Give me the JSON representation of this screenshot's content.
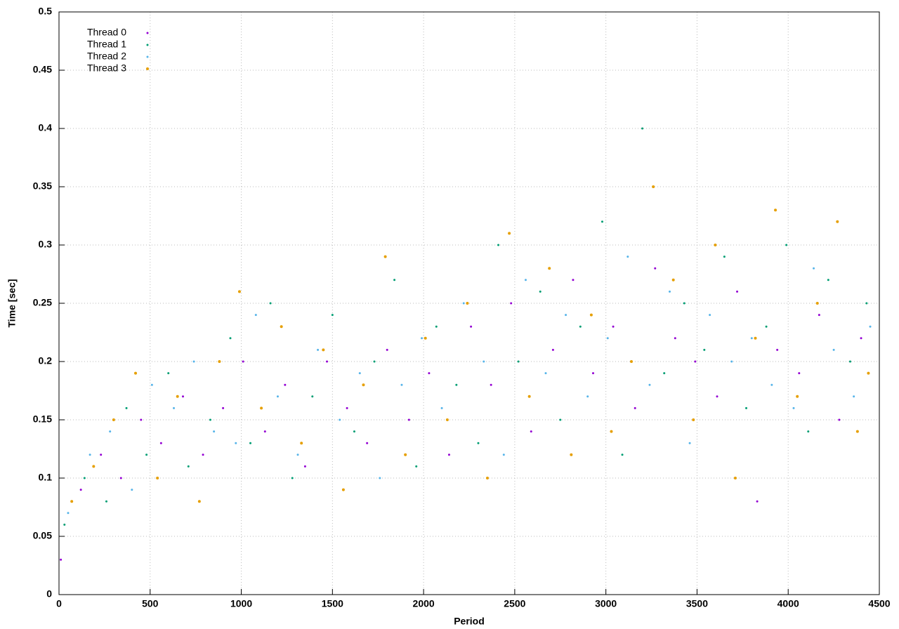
{
  "chart_data": {
    "type": "scatter",
    "x_label": "Period",
    "y_label": "Time [sec]",
    "xlim": [
      0,
      4500
    ],
    "ylim": [
      0,
      0.5
    ],
    "xticks": [
      0,
      500,
      1000,
      1500,
      2000,
      2500,
      3000,
      3500,
      4000,
      4500
    ],
    "yticks": [
      0,
      0.05,
      0.1,
      0.15,
      0.2,
      0.25,
      0.3,
      0.35,
      0.4,
      0.45,
      0.5
    ],
    "grid": true,
    "legend": "top-left",
    "series": [
      {
        "name": "Thread 0",
        "color": "#9400d3",
        "x": [
          10,
          120,
          230,
          340,
          450,
          560,
          680,
          790,
          900,
          1010,
          1130,
          1240,
          1350,
          1470,
          1580,
          1690,
          1800,
          1920,
          2030,
          2140,
          2260,
          2370,
          2480,
          2590,
          2710,
          2820,
          2930,
          3040,
          3160,
          3270,
          3380,
          3490,
          3610,
          3720,
          3830,
          3940,
          4060,
          4170,
          4280,
          4400
        ],
        "values": [
          0.03,
          0.09,
          0.12,
          0.1,
          0.15,
          0.13,
          0.17,
          0.12,
          0.16,
          0.2,
          0.14,
          0.18,
          0.11,
          0.2,
          0.16,
          0.13,
          0.21,
          0.15,
          0.19,
          0.12,
          0.23,
          0.18,
          0.25,
          0.14,
          0.21,
          0.27,
          0.19,
          0.23,
          0.16,
          0.28,
          0.22,
          0.2,
          0.17,
          0.26,
          0.08,
          0.21,
          0.19,
          0.24,
          0.15,
          0.22
        ]
      },
      {
        "name": "Thread 1",
        "color": "#009e73",
        "x": [
          30,
          140,
          260,
          370,
          480,
          600,
          710,
          830,
          940,
          1050,
          1160,
          1280,
          1390,
          1500,
          1620,
          1730,
          1840,
          1960,
          2070,
          2180,
          2300,
          2410,
          2520,
          2640,
          2750,
          2860,
          2980,
          3090,
          3200,
          3320,
          3430,
          3540,
          3650,
          3770,
          3880,
          3990,
          4110,
          4220,
          4340,
          4430
        ],
        "values": [
          0.06,
          0.1,
          0.08,
          0.16,
          0.12,
          0.19,
          0.11,
          0.15,
          0.22,
          0.13,
          0.25,
          0.1,
          0.17,
          0.24,
          0.14,
          0.2,
          0.27,
          0.11,
          0.23,
          0.18,
          0.13,
          0.3,
          0.2,
          0.26,
          0.15,
          0.23,
          0.32,
          0.12,
          0.4,
          0.19,
          0.25,
          0.21,
          0.29,
          0.16,
          0.23,
          0.3,
          0.14,
          0.27,
          0.2,
          0.25
        ]
      },
      {
        "name": "Thread 2",
        "color": "#56b4e9",
        "x": [
          50,
          170,
          280,
          400,
          510,
          630,
          740,
          850,
          970,
          1080,
          1200,
          1310,
          1420,
          1540,
          1650,
          1760,
          1880,
          1990,
          2100,
          2220,
          2330,
          2440,
          2560,
          2670,
          2780,
          2900,
          3010,
          3120,
          3240,
          3350,
          3460,
          3570,
          3690,
          3800,
          3910,
          4030,
          4140,
          4250,
          4360,
          4450
        ],
        "values": [
          0.07,
          0.12,
          0.14,
          0.09,
          0.18,
          0.16,
          0.2,
          0.14,
          0.13,
          0.24,
          0.17,
          0.12,
          0.21,
          0.15,
          0.19,
          0.1,
          0.18,
          0.22,
          0.16,
          0.25,
          0.2,
          0.12,
          0.27,
          0.19,
          0.24,
          0.17,
          0.22,
          0.29,
          0.18,
          0.26,
          0.13,
          0.24,
          0.2,
          0.22,
          0.18,
          0.16,
          0.28,
          0.21,
          0.17,
          0.23
        ]
      },
      {
        "name": "Thread 3",
        "color": "#e69f00",
        "x": [
          70,
          190,
          300,
          420,
          540,
          650,
          770,
          880,
          990,
          1110,
          1220,
          1330,
          1450,
          1560,
          1670,
          1790,
          1900,
          2010,
          2130,
          2240,
          2350,
          2470,
          2580,
          2690,
          2810,
          2920,
          3030,
          3140,
          3260,
          3370,
          3480,
          3600,
          3710,
          3820,
          3930,
          4050,
          4160,
          4270,
          4380,
          4440
        ],
        "values": [
          0.08,
          0.11,
          0.15,
          0.19,
          0.1,
          0.17,
          0.08,
          0.2,
          0.26,
          0.16,
          0.23,
          0.13,
          0.21,
          0.09,
          0.18,
          0.29,
          0.12,
          0.22,
          0.15,
          0.25,
          0.1,
          0.31,
          0.17,
          0.28,
          0.12,
          0.24,
          0.14,
          0.2,
          0.35,
          0.27,
          0.15,
          0.3,
          0.1,
          0.22,
          0.33,
          0.17,
          0.25,
          0.32,
          0.14,
          0.19
        ]
      }
    ]
  }
}
